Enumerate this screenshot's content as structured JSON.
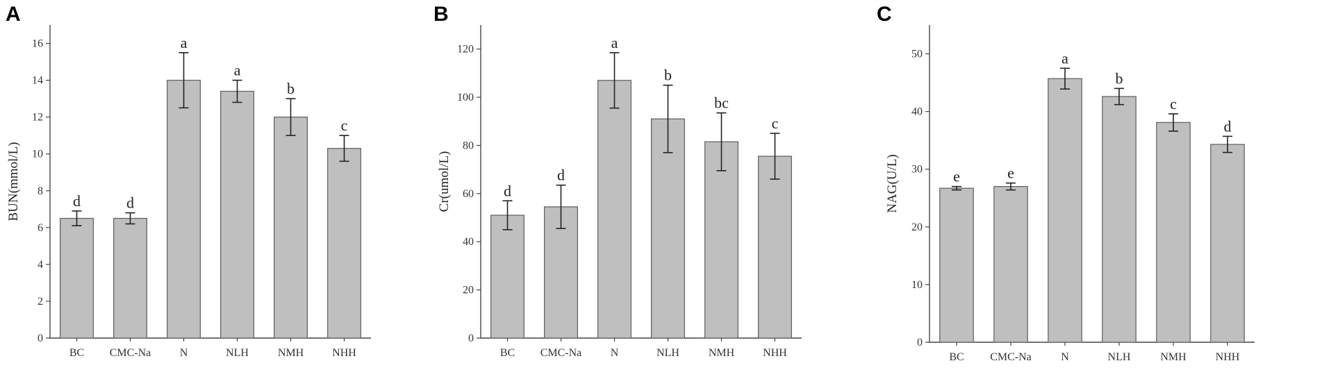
{
  "chart_data": [
    {
      "panel": "A",
      "type": "bar",
      "ylabel": "BUN(mmol/L)",
      "ylim": [
        0,
        17
      ],
      "yticks": [
        0,
        2,
        4,
        6,
        8,
        10,
        12,
        14,
        16
      ],
      "categories": [
        "BC",
        "CMC-Na",
        "N",
        "NLH",
        "NMH",
        "NHH"
      ],
      "values": [
        6.5,
        6.5,
        14.0,
        13.4,
        12.0,
        10.3
      ],
      "errors": [
        0.4,
        0.3,
        1.5,
        0.6,
        1.0,
        0.7
      ],
      "labels": [
        "d",
        "d",
        "a",
        "a",
        "b",
        "c"
      ]
    },
    {
      "panel": "B",
      "type": "bar",
      "ylabel": "Cr(umol/L)",
      "ylim": [
        0,
        130
      ],
      "yticks": [
        0,
        20,
        40,
        60,
        80,
        100,
        120
      ],
      "categories": [
        "BC",
        "CMC-Na",
        "N",
        "NLH",
        "NMH",
        "NHH"
      ],
      "values": [
        51,
        54.5,
        107,
        91,
        81.5,
        75.5
      ],
      "errors": [
        6,
        9,
        11.5,
        14,
        12,
        9.5
      ],
      "labels": [
        "d",
        "d",
        "a",
        "b",
        "bc",
        "c"
      ]
    },
    {
      "panel": "C",
      "type": "bar",
      "ylabel": "NAG(U/L)",
      "ylim": [
        0,
        55
      ],
      "yticks": [
        0,
        10,
        20,
        30,
        40,
        50
      ],
      "categories": [
        "BC",
        "CMC-Na",
        "N",
        "NLH",
        "NMH",
        "NHH"
      ],
      "values": [
        26.7,
        27.0,
        45.7,
        42.6,
        38.1,
        34.3
      ],
      "errors": [
        0.3,
        0.6,
        1.8,
        1.4,
        1.5,
        1.4
      ],
      "labels": [
        "e",
        "e",
        "a",
        "b",
        "c",
        "d"
      ]
    }
  ]
}
